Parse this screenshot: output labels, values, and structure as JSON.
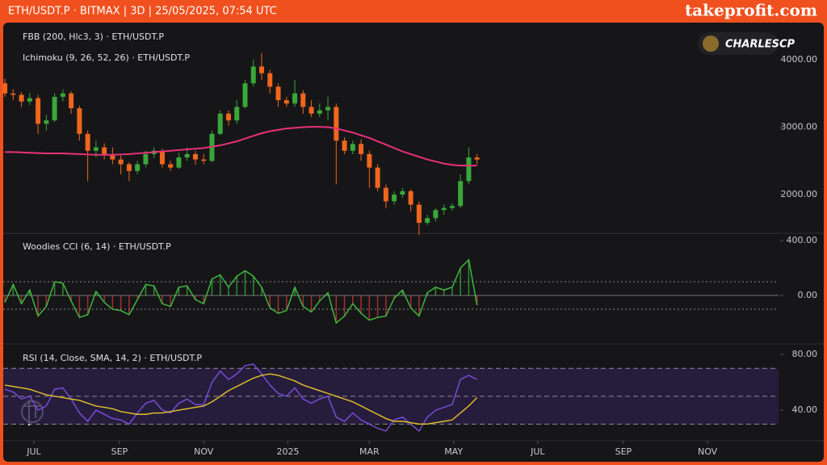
{
  "header": {
    "title": "ETH/USDT.P · BITMAX | 3D | 25/05/2025, 07:54 UTC",
    "brand": "takeprofit.com"
  },
  "badge": "CHARLESCP",
  "chart_data": [
    {
      "type": "candlestick",
      "title": "FBB (200, Hlc3, 3) · ETH/USDT.P",
      "subtitle": "Ichimoku (9, 26, 52, 26) · ETH/USDT.P",
      "open": [
        3650,
        3500,
        3480,
        3380,
        3430,
        3050,
        3100,
        3450,
        3500,
        3280,
        2900,
        2650,
        2700,
        2600,
        2520,
        2450,
        2350,
        2450,
        2600,
        2650,
        2450,
        2400,
        2550,
        2600,
        2520,
        2500,
        2900,
        3200,
        3100,
        3300,
        3650,
        3900,
        3800,
        3600,
        3400,
        3350,
        3500,
        3300,
        3200,
        3250,
        3300,
        2800,
        2650,
        2750,
        2600,
        2400,
        2100,
        1900,
        2000,
        2050,
        1850,
        1580,
        1650,
        1770,
        1800,
        1830,
        2200,
        2550
      ],
      "high": [
        3720,
        3560,
        3520,
        3510,
        3480,
        3180,
        3500,
        3560,
        3530,
        3320,
        2950,
        2800,
        2760,
        2700,
        2580,
        2480,
        2500,
        2650,
        2700,
        2680,
        2500,
        2620,
        2700,
        2650,
        2600,
        2950,
        3250,
        3250,
        3400,
        3700,
        4000,
        4100,
        3850,
        3650,
        3450,
        3700,
        3550,
        3400,
        3350,
        3450,
        3350,
        2850,
        2800,
        2820,
        2650,
        2450,
        2150,
        2050,
        2100,
        2080,
        1900,
        1700,
        1800,
        1850,
        1870,
        2300,
        2700,
        2600
      ],
      "low": [
        3450,
        3400,
        3300,
        3330,
        2900,
        2950,
        3080,
        3380,
        3200,
        2800,
        2200,
        2550,
        2520,
        2450,
        2300,
        2200,
        2300,
        2400,
        2540,
        2400,
        2350,
        2380,
        2500,
        2440,
        2450,
        2480,
        2880,
        3020,
        3050,
        3280,
        3600,
        3700,
        3500,
        3300,
        3300,
        3300,
        3200,
        3150,
        3150,
        3100,
        2150,
        2600,
        2600,
        2500,
        2100,
        2050,
        1800,
        1850,
        1950,
        1750,
        1400,
        1550,
        1600,
        1700,
        1760,
        1800,
        2150,
        2450
      ],
      "close": [
        3500,
        3480,
        3380,
        3430,
        3050,
        3100,
        3450,
        3500,
        3280,
        2900,
        2650,
        2700,
        2600,
        2520,
        2450,
        2350,
        2450,
        2600,
        2650,
        2450,
        2400,
        2550,
        2600,
        2520,
        2500,
        2900,
        3200,
        3100,
        3300,
        3650,
        3900,
        3800,
        3600,
        3400,
        3350,
        3500,
        3300,
        3200,
        3250,
        3300,
        2800,
        2650,
        2750,
        2600,
        2400,
        2100,
        1900,
        2000,
        2050,
        1850,
        1580,
        1650,
        1770,
        1800,
        1830,
        2200,
        2550,
        2520
      ],
      "up_color": "#3aa63a",
      "down_color": "#f0661e",
      "series": [
        {
          "color": "#e8307a",
          "values": [
            2630,
            2630,
            2625,
            2620,
            2615,
            2610,
            2610,
            2610,
            2605,
            2600,
            2595,
            2590,
            2590,
            2590,
            2595,
            2600,
            2610,
            2620,
            2630,
            2640,
            2650,
            2660,
            2670,
            2680,
            2690,
            2710,
            2730,
            2760,
            2790,
            2830,
            2870,
            2910,
            2940,
            2960,
            2980,
            2990,
            3000,
            3005,
            3005,
            3000,
            2980,
            2950,
            2920,
            2880,
            2840,
            2790,
            2740,
            2690,
            2640,
            2600,
            2560,
            2520,
            2490,
            2460,
            2440,
            2430,
            2430,
            2430
          ]
        }
      ],
      "ylim": [
        1437,
        4527
      ],
      "yticks": [
        {
          "value": 4000,
          "label": "4000.00"
        },
        {
          "value": 3000,
          "label": "3000.00"
        },
        {
          "value": 2000,
          "label": "2000.00"
        }
      ]
    },
    {
      "type": "line",
      "title": "Woodies CCI (6, 14) · ETH/USDT.P",
      "series": [
        {
          "color": "#3fbf3f",
          "values": [
            -50,
            80,
            -60,
            40,
            -150,
            -80,
            100,
            90,
            -40,
            -160,
            -140,
            30,
            -50,
            -100,
            -110,
            -140,
            -30,
            80,
            70,
            -60,
            -80,
            60,
            70,
            -30,
            -60,
            120,
            150,
            60,
            140,
            180,
            140,
            60,
            -90,
            -130,
            -110,
            60,
            -80,
            -120,
            -40,
            20,
            -200,
            -150,
            -60,
            -130,
            -180,
            -160,
            -150,
            -20,
            40,
            -90,
            -150,
            20,
            60,
            40,
            60,
            200,
            260,
            -70
          ]
        }
      ],
      "levels": [
        100,
        -100
      ],
      "ylim": [
        -347,
        447
      ],
      "yticks": [
        {
          "value": 400,
          "label": "400.00"
        },
        {
          "value": 0,
          "label": "0.00"
        }
      ]
    },
    {
      "type": "line",
      "title": "RSI (14, Close, SMA, 14, 2) · ETH/USDT.P",
      "series": [
        {
          "color": "#7b4fe0",
          "values": [
            55,
            53,
            48,
            50,
            40,
            43,
            55,
            56,
            48,
            38,
            32,
            40,
            37,
            34,
            33,
            30,
            38,
            45,
            47,
            40,
            38,
            45,
            48,
            44,
            44,
            60,
            68,
            62,
            66,
            72,
            73,
            66,
            58,
            52,
            50,
            56,
            48,
            45,
            48,
            50,
            35,
            32,
            38,
            33,
            30,
            27,
            25,
            33,
            35,
            30,
            25,
            35,
            40,
            42,
            44,
            62,
            65,
            62
          ]
        },
        {
          "color": "#e6c229",
          "values": [
            58,
            57,
            56,
            55,
            53,
            51,
            50,
            49,
            48,
            47,
            45,
            43,
            42,
            41,
            39,
            38,
            37,
            37,
            38,
            38,
            39,
            40,
            41,
            42,
            43,
            46,
            50,
            54,
            57,
            60,
            63,
            65,
            66,
            65,
            63,
            61,
            58,
            56,
            54,
            52,
            50,
            48,
            46,
            43,
            40,
            37,
            34,
            32,
            32,
            31,
            30,
            30,
            31,
            32,
            33,
            38,
            43,
            49
          ]
        }
      ],
      "levels": [
        70,
        50,
        30
      ],
      "ylim": [
        18.6,
        86.4
      ],
      "yticks": [
        {
          "value": 80,
          "label": "80.00"
        },
        {
          "value": 40,
          "label": "40.00"
        }
      ],
      "xlim": [
        -0.2,
        93.4
      ],
      "xticks": [
        {
          "value": 3.5,
          "label": "JUL"
        },
        {
          "value": 13.83,
          "label": "SEP"
        },
        {
          "value": 24,
          "label": "NOV"
        },
        {
          "value": 34.17,
          "label": "2025"
        },
        {
          "value": 44,
          "label": "MAR"
        },
        {
          "value": 54.17,
          "label": "MAY"
        },
        {
          "value": 64.33,
          "label": "JUL"
        },
        {
          "value": 74.67,
          "label": "SEP"
        },
        {
          "value": 84.83,
          "label": "NOV"
        }
      ]
    }
  ]
}
